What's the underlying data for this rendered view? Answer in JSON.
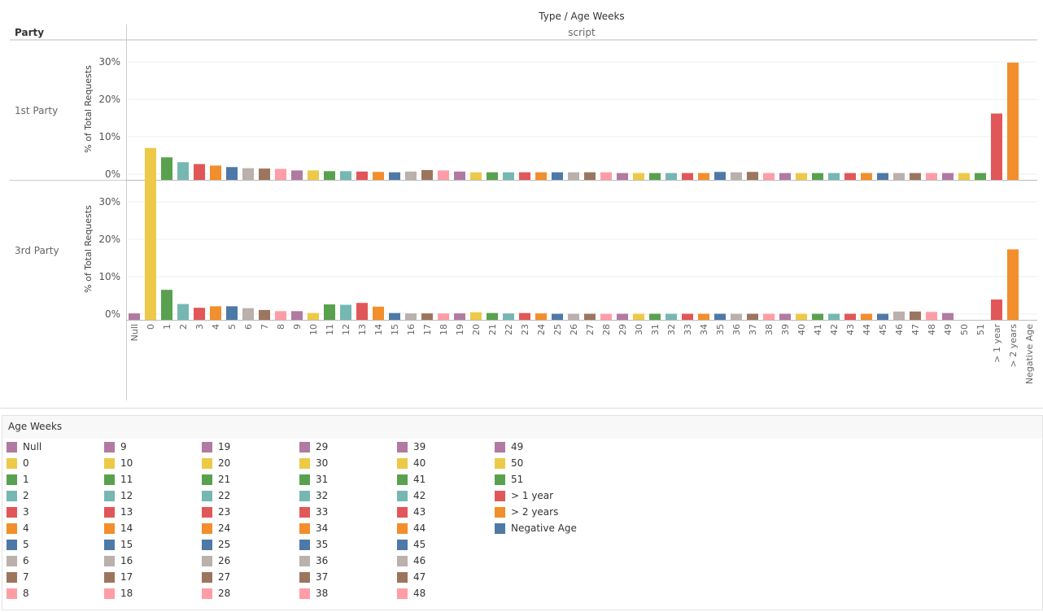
{
  "header": {
    "title": "Type / Age Weeks",
    "column_label": "script",
    "row_header": "Party"
  },
  "legend": {
    "title": "Age Weeks"
  },
  "colors": {
    "Null": "#b07aa1",
    "0": "#edc948",
    "1": "#59a14f",
    "2": "#76b7b2",
    "3": "#e15759",
    "4": "#f28e2b",
    "5": "#4e79a7",
    "6": "#bab0ac",
    "7": "#9c755f",
    "8": "#ff9da7",
    "9": "#b07aa1",
    "10": "#edc948",
    "11": "#59a14f",
    "12": "#76b7b2",
    "13": "#e15759",
    "14": "#f28e2b",
    "15": "#4e79a7",
    "16": "#bab0ac",
    "17": "#9c755f",
    "18": "#ff9da7",
    "19": "#b07aa1",
    "20": "#edc948",
    "21": "#59a14f",
    "22": "#76b7b2",
    "23": "#e15759",
    "24": "#f28e2b",
    "25": "#4e79a7",
    "26": "#bab0ac",
    "27": "#9c755f",
    "28": "#ff9da7",
    "29": "#b07aa1",
    "30": "#edc948",
    "31": "#59a14f",
    "32": "#76b7b2",
    "33": "#e15759",
    "34": "#f28e2b",
    "35": "#4e79a7",
    "36": "#bab0ac",
    "37": "#9c755f",
    "38": "#ff9da7",
    "39": "#b07aa1",
    "40": "#edc948",
    "41": "#59a14f",
    "42": "#76b7b2",
    "43": "#e15759",
    "44": "#f28e2b",
    "45": "#4e79a7",
    "46": "#bab0ac",
    "47": "#9c755f",
    "48": "#ff9da7",
    "49": "#b07aa1",
    "50": "#edc948",
    "51": "#59a14f",
    "> 1 year": "#e15759",
    "> 2 years": "#f28e2b",
    "Negative Age": "#4e79a7"
  },
  "chart_data": {
    "type": "bar",
    "categories": [
      "Null",
      "0",
      "1",
      "2",
      "3",
      "4",
      "5",
      "6",
      "7",
      "8",
      "9",
      "10",
      "11",
      "12",
      "13",
      "14",
      "15",
      "16",
      "17",
      "18",
      "19",
      "20",
      "21",
      "22",
      "23",
      "24",
      "25",
      "26",
      "27",
      "28",
      "29",
      "30",
      "31",
      "32",
      "33",
      "34",
      "35",
      "36",
      "37",
      "38",
      "39",
      "40",
      "41",
      "42",
      "43",
      "44",
      "45",
      "46",
      "47",
      "48",
      "49",
      "50",
      "51",
      "> 1 year",
      "> 2 years",
      "Negative Age"
    ],
    "ylabel": "% of Total Requests",
    "y_ticks": [
      "0%",
      "10%",
      "20%",
      "30%"
    ],
    "ylim": [
      -1.5,
      35
    ],
    "grid": "horizontal",
    "legend_position": "bottom",
    "series": [
      {
        "name": "1st Party",
        "values": [
          0,
          7.0,
          4.5,
          3.2,
          2.7,
          2.3,
          1.9,
          1.6,
          1.5,
          1.4,
          1.0,
          1.0,
          0.8,
          0.8,
          0.7,
          0.6,
          0.5,
          0.7,
          1.1,
          1.0,
          0.7,
          0.5,
          0.5,
          0.5,
          0.5,
          0.5,
          0.5,
          0.5,
          0.5,
          0.5,
          0.3,
          0.3,
          0.3,
          0.3,
          0.3,
          0.3,
          0.6,
          0.5,
          0.6,
          0.3,
          0.3,
          0.3,
          0.3,
          0.3,
          0.3,
          0.3,
          0.3,
          0.3,
          0.3,
          0.3,
          0.3,
          0.3,
          0.3,
          16.2,
          29.8,
          0
        ]
      },
      {
        "name": "3rd Party",
        "values": [
          0.2,
          36.8,
          6.5,
          2.7,
          1.7,
          2.1,
          2.1,
          1.6,
          1.1,
          0.8,
          0.8,
          0.3,
          2.6,
          2.5,
          3.0,
          2.0,
          0.3,
          0.2,
          0.2,
          0.2,
          0.2,
          0.5,
          0.3,
          0.2,
          0.3,
          0.2,
          0.1,
          0.1,
          0.1,
          0.1,
          0.1,
          0.1,
          0.1,
          0.1,
          0.1,
          0.1,
          0.1,
          0.1,
          0.1,
          0.1,
          0.1,
          0.1,
          0.1,
          0.1,
          0.1,
          0.1,
          0.1,
          0.7,
          0.7,
          0.6,
          0.3,
          0,
          0,
          3.9,
          17.3,
          0
        ]
      }
    ]
  }
}
